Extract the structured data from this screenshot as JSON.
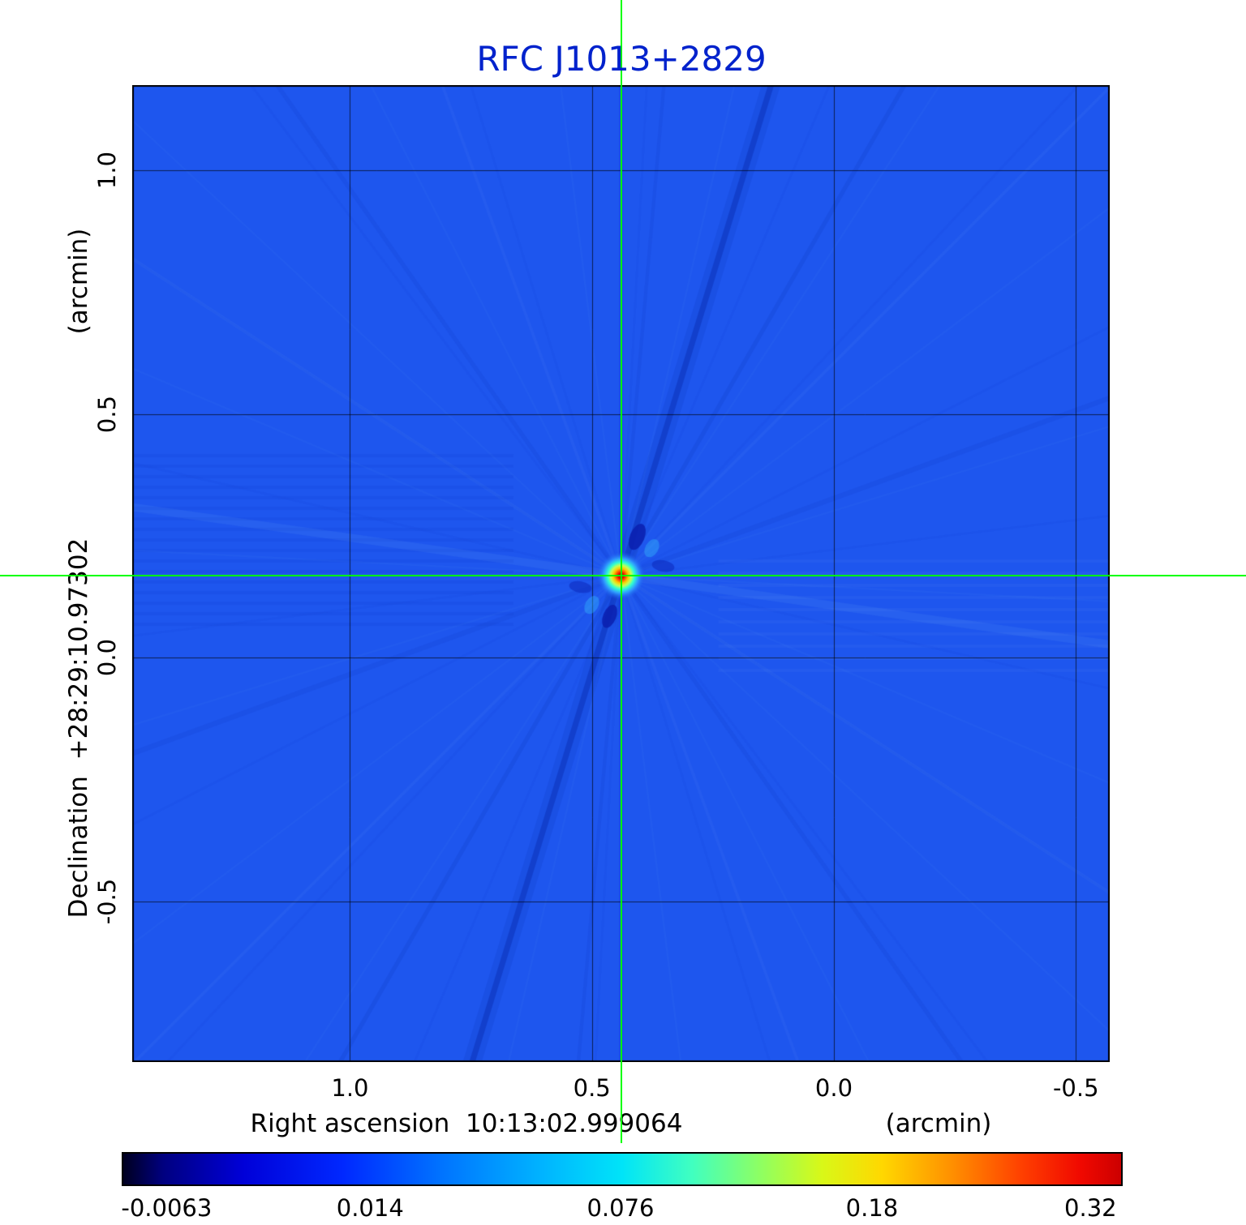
{
  "title": "RFC J1013+2829",
  "chart_data": {
    "type": "heatmap",
    "title": "RFC J1013+2829",
    "x_axis": {
      "label": "Right ascension  10:13:02.999064",
      "unit": "(arcmin)",
      "ticks": [
        1.0,
        0.5,
        0.0,
        -0.5
      ],
      "tick_labels": [
        "1.0",
        "0.5",
        "0.0",
        "-0.5"
      ],
      "range": [
        1.45,
        -0.57
      ]
    },
    "y_axis": {
      "label": "Declination  +28:29:10.97302",
      "unit": "(arcmin)",
      "ticks": [
        1.0,
        0.5,
        0.0,
        -0.5
      ],
      "tick_labels": [
        "1.0",
        "0.5",
        "0.0",
        "-0.5"
      ],
      "range": [
        -0.83,
        1.175
      ]
    },
    "grid": true,
    "crosshair": {
      "color": "#00ff00",
      "x_arcmin": 0.44,
      "y_arcmin": 0.168
    },
    "source": {
      "x_arcmin": 0.44,
      "y_arcmin": 0.168
    },
    "colors": {
      "title": "#0022cc",
      "map_background": "#1e56ee",
      "grid": "rgba(0,0,0,0.65)",
      "frame": "#000000",
      "text": "#000000"
    },
    "colorbar": {
      "orientation": "horizontal",
      "tick_labels": [
        "-0.0063",
        "0.014",
        "0.076",
        "0.18",
        "0.32"
      ],
      "tick_values": [
        -0.0063,
        0.014,
        0.076,
        0.18,
        0.32
      ],
      "tick_positions": [
        0.045,
        0.249,
        0.5,
        0.752,
        0.971
      ],
      "gradient": [
        {
          "pos": 0.0,
          "color": "#000020"
        },
        {
          "pos": 0.04,
          "color": "#000080"
        },
        {
          "pos": 0.12,
          "color": "#0000d8"
        },
        {
          "pos": 0.22,
          "color": "#0028ff"
        },
        {
          "pos": 0.32,
          "color": "#0074ff"
        },
        {
          "pos": 0.42,
          "color": "#00b4ff"
        },
        {
          "pos": 0.5,
          "color": "#00e4f8"
        },
        {
          "pos": 0.57,
          "color": "#40ffc0"
        },
        {
          "pos": 0.64,
          "color": "#90ff60"
        },
        {
          "pos": 0.7,
          "color": "#d8f818"
        },
        {
          "pos": 0.76,
          "color": "#ffd800"
        },
        {
          "pos": 0.83,
          "color": "#ff9000"
        },
        {
          "pos": 0.9,
          "color": "#ff4000"
        },
        {
          "pos": 0.96,
          "color": "#f00800"
        },
        {
          "pos": 1.0,
          "color": "#cc0000"
        }
      ]
    }
  }
}
